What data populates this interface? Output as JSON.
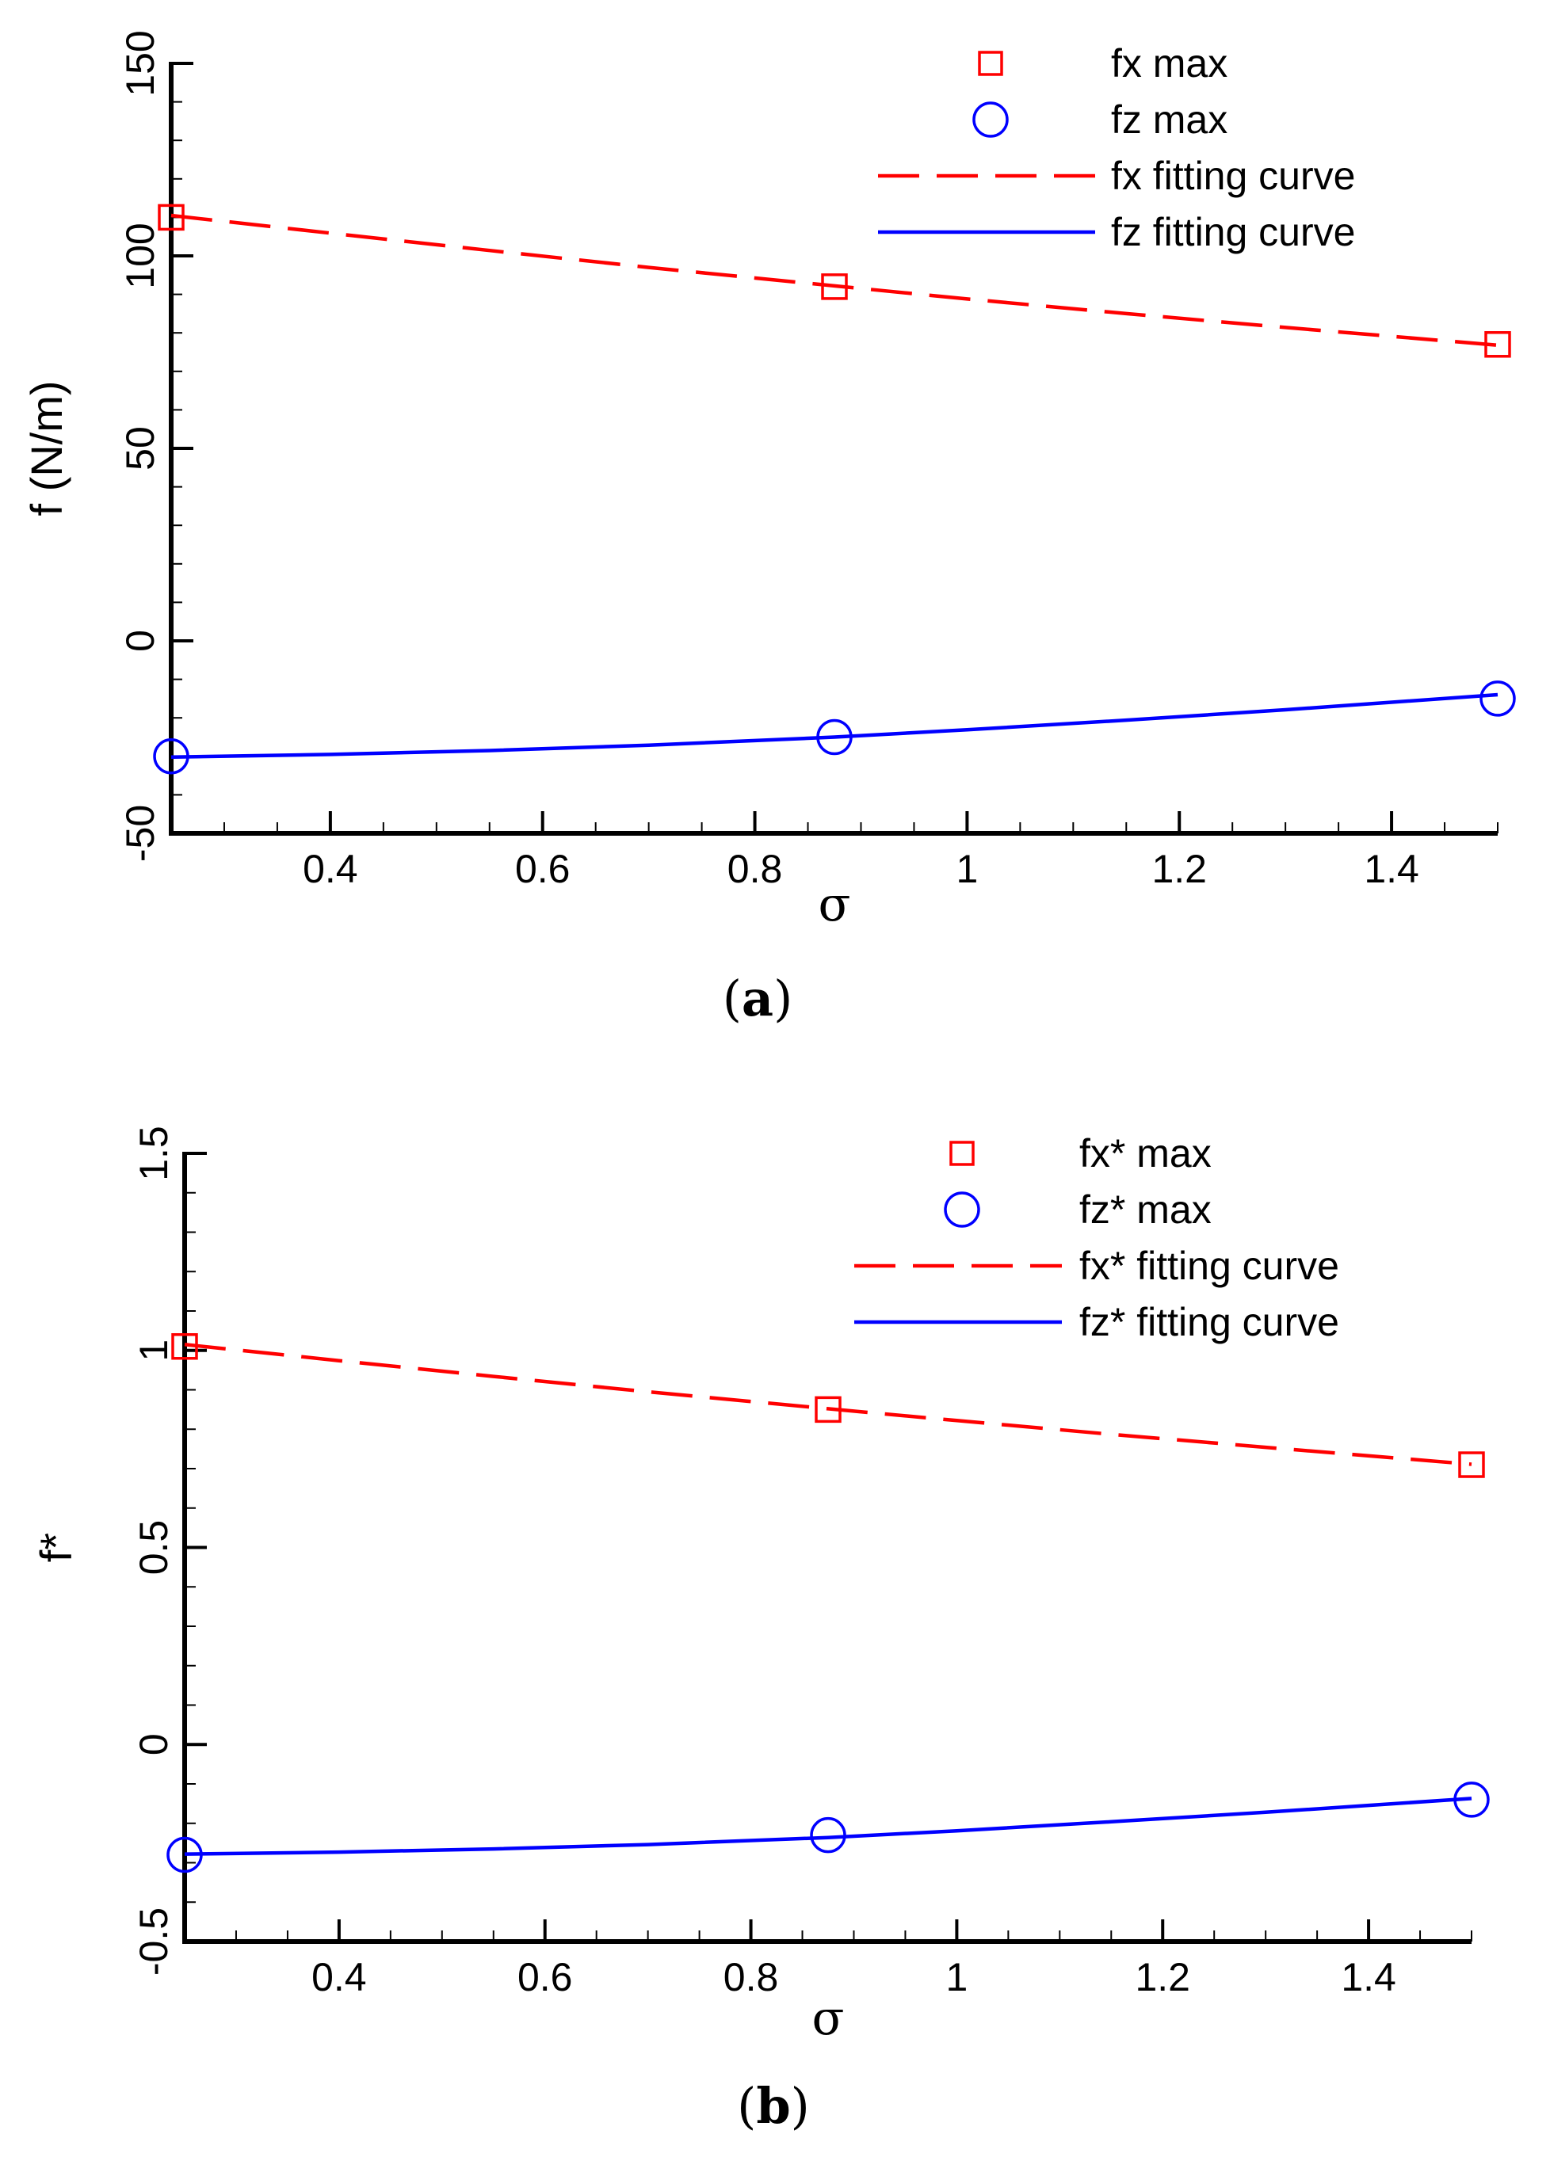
{
  "chart_data": [
    {
      "type": "line",
      "panel": "a",
      "caption_open": "(",
      "caption_letter": "a",
      "caption_close": ")",
      "title": "",
      "xlabel": "σ",
      "ylabel": "f (N/m)",
      "xlim": [
        0.25,
        1.5
      ],
      "ylim": [
        -50,
        150
      ],
      "x_ticks": [
        0.4,
        0.6,
        0.8,
        1.0,
        1.2,
        1.4
      ],
      "x_tick_labels": [
        "0.4",
        "0.6",
        "0.8",
        "1",
        "1.2",
        "1.4"
      ],
      "y_ticks": [
        -50,
        0,
        50,
        100,
        150
      ],
      "y_tick_labels": [
        "-50",
        "0",
        "50",
        "100",
        "150"
      ],
      "x_minor_step": 0.05,
      "y_minor_step": 10,
      "legend_position": "top-right",
      "series": [
        {
          "name": "fx max",
          "kind": "markers",
          "marker": "square",
          "color": "#ff0000",
          "x": [
            0.25,
            0.875,
            1.5
          ],
          "y": [
            110,
            92,
            77
          ]
        },
        {
          "name": "fz max",
          "kind": "markers",
          "marker": "circle",
          "color": "#0000ff",
          "x": [
            0.25,
            0.875,
            1.5
          ],
          "y": [
            -30,
            -25,
            -15
          ]
        },
        {
          "name": "fx fitting curve",
          "kind": "line",
          "dash": "dashed",
          "color": "#ff0000",
          "x": [
            0.25,
            0.4,
            0.55,
            0.7,
            0.875,
            1.0,
            1.15,
            1.3,
            1.5
          ],
          "y": [
            110.5,
            105.9,
            101.4,
            97.0,
            92.2,
            88.8,
            85.0,
            81.4,
            76.8
          ]
        },
        {
          "name": "fz fitting curve",
          "kind": "line",
          "dash": "solid",
          "color": "#0000ff",
          "x": [
            0.25,
            0.4,
            0.55,
            0.7,
            0.875,
            1.0,
            1.15,
            1.3,
            1.5
          ],
          "y": [
            -30.2,
            -29.5,
            -28.5,
            -27.1,
            -25.0,
            -23.1,
            -20.6,
            -17.9,
            -14.0
          ]
        }
      ]
    },
    {
      "type": "line",
      "panel": "b",
      "caption_open": "(",
      "caption_letter": "b",
      "caption_close": ")",
      "title": "",
      "xlabel": "σ",
      "ylabel": "f*",
      "xlim": [
        0.25,
        1.5
      ],
      "ylim": [
        -0.5,
        1.5
      ],
      "x_ticks": [
        0.4,
        0.6,
        0.8,
        1.0,
        1.2,
        1.4
      ],
      "x_tick_labels": [
        "0.4",
        "0.6",
        "0.8",
        "1",
        "1.2",
        "1.4"
      ],
      "y_ticks": [
        -0.5,
        0,
        0.5,
        1,
        1.5
      ],
      "y_tick_labels": [
        "-0.5",
        "0",
        "0.5",
        "1",
        "1.5"
      ],
      "x_minor_step": 0.05,
      "y_minor_step": 0.1,
      "legend_position": "top-right",
      "series": [
        {
          "name": "fx* max",
          "kind": "markers",
          "marker": "square",
          "color": "#ff0000",
          "x": [
            0.25,
            0.875,
            1.5
          ],
          "y": [
            1.01,
            0.85,
            0.71
          ]
        },
        {
          "name": "fz* max",
          "kind": "markers",
          "marker": "circle",
          "color": "#0000ff",
          "x": [
            0.25,
            0.875,
            1.5
          ],
          "y": [
            -0.28,
            -0.23,
            -0.14
          ]
        },
        {
          "name": "fx* fitting curve",
          "kind": "line",
          "dash": "dashed",
          "color": "#ff0000",
          "x": [
            0.25,
            0.4,
            0.55,
            0.7,
            0.875,
            1.0,
            1.15,
            1.3,
            1.5
          ],
          "y": [
            1.015,
            0.974,
            0.934,
            0.895,
            0.852,
            0.822,
            0.787,
            0.754,
            0.711
          ]
        },
        {
          "name": "fz* fitting curve",
          "kind": "line",
          "dash": "solid",
          "color": "#0000ff",
          "x": [
            0.25,
            0.4,
            0.55,
            0.7,
            0.875,
            1.0,
            1.15,
            1.3,
            1.5
          ],
          "y": [
            -0.278,
            -0.273,
            -0.265,
            -0.254,
            -0.236,
            -0.219,
            -0.196,
            -0.172,
            -0.137
          ]
        }
      ]
    }
  ]
}
